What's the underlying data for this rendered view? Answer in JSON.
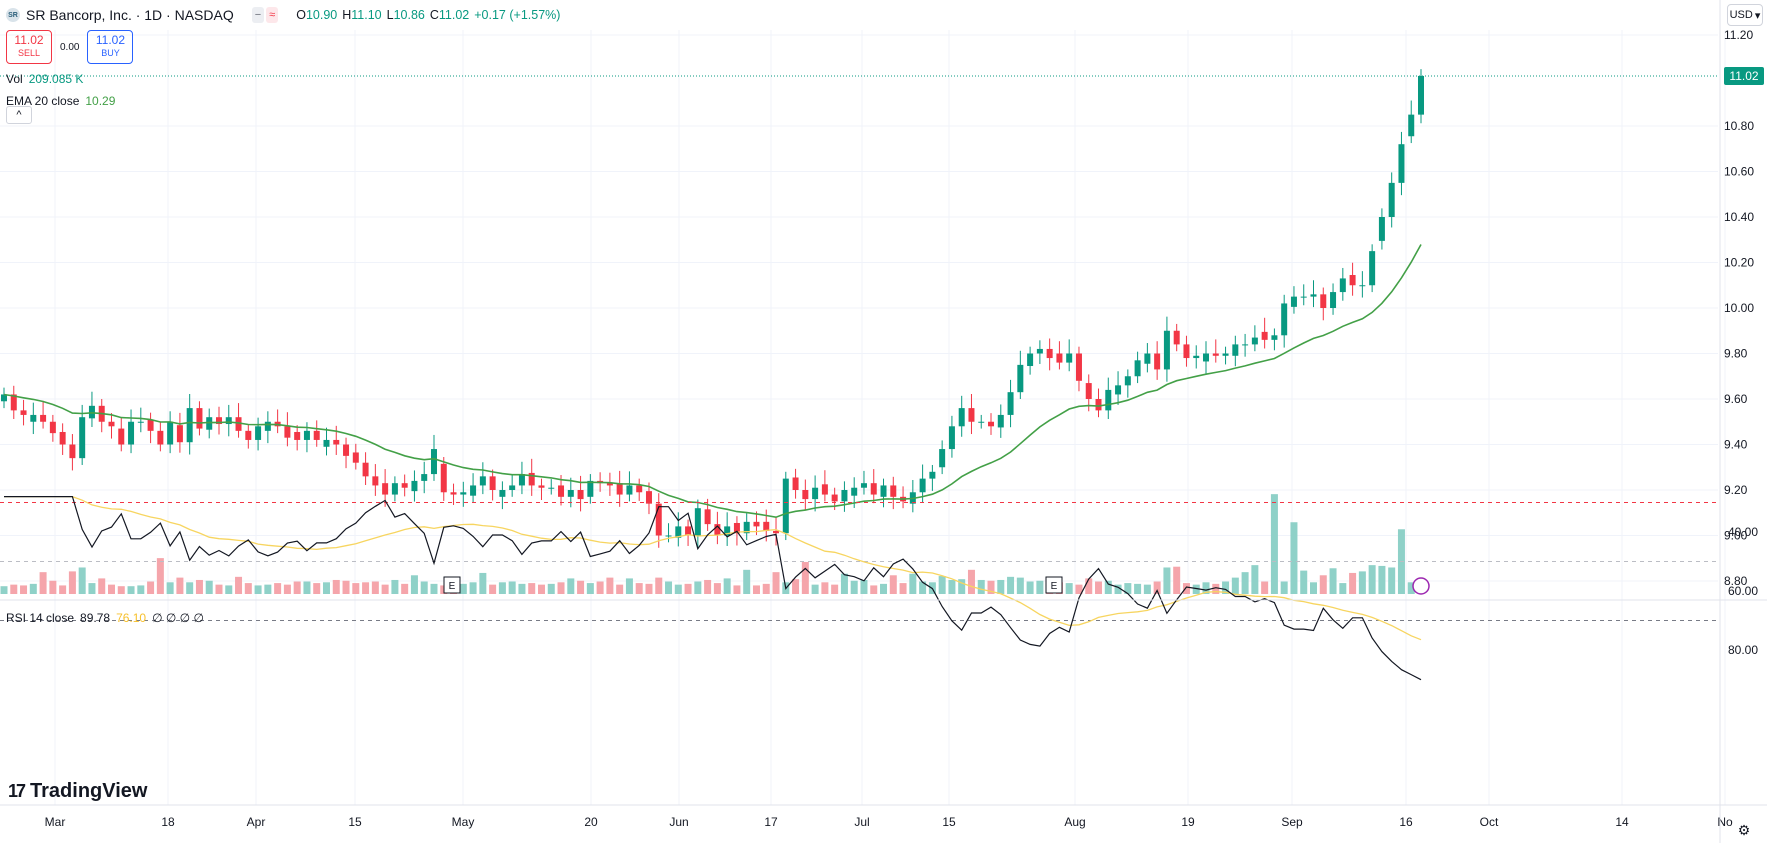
{
  "header": {
    "logo_text": "SR",
    "title": "SR Bancorp, Inc. · 1D · NASDAQ",
    "icons": [
      "compare-icon",
      "indicator-icon"
    ],
    "icon_glyphs": [
      "−",
      "≈"
    ],
    "ohlc": {
      "o_label": "O",
      "o": "10.90",
      "h_label": "H",
      "h": "11.10",
      "l_label": "L",
      "l": "10.86",
      "c_label": "C",
      "c": "11.02",
      "change": "+0.17 (+1.57%)"
    }
  },
  "trade": {
    "sell_price": "11.02",
    "sell_label": "SELL",
    "spread": "0.00",
    "buy_price": "11.02",
    "buy_label": "BUY"
  },
  "legend": {
    "vol_label": "Vol",
    "vol_value": "209.085 K",
    "ema_label": "EMA 20 close",
    "ema_value": "10.29",
    "collapse_glyph": "^"
  },
  "rsi_legend": {
    "label": "RSI 14 close",
    "rsi_value": "89.78",
    "ma_value": "76.10",
    "extra": "∅ ∅ ∅ ∅"
  },
  "currency": "USD",
  "brand": {
    "mark": "17",
    "name": "TradingView"
  },
  "settings_glyph": "⚙",
  "last_price_tag": "11.02",
  "colors": {
    "up": "#089981",
    "down": "#f23645",
    "ema": "#43a047",
    "rsi": "#131722",
    "rsi_ma": "#f7d560",
    "vol_up": "#8fd1c8",
    "vol_down": "#f5a5ab"
  },
  "chart_data": [
    {
      "type": "candlestick",
      "title": "SR Bancorp, Inc. · 1D · NASDAQ",
      "x_tick_labels": [
        "Mar",
        "18",
        "Apr",
        "15",
        "May",
        "20",
        "Jun",
        "17",
        "Jul",
        "15",
        "Aug",
        "19",
        "Sep",
        "16",
        "Oct",
        "14",
        "No"
      ],
      "y_tick_labels": [
        "11.20",
        "10.80",
        "10.60",
        "10.40",
        "10.20",
        "10.00",
        "9.80",
        "9.60",
        "9.40",
        "9.20",
        "9.00",
        "8.80"
      ],
      "ylim": [
        8.8,
        11.2
      ],
      "grid": true,
      "earnings_markers": [
        {
          "date": "Apr 30",
          "label": "E"
        },
        {
          "date": "Jul 30",
          "label": "E"
        }
      ],
      "series": [
        {
          "name": "Close",
          "points": [
            [
              "Feb 26",
              9.62
            ],
            [
              "Feb 27",
              9.55
            ],
            [
              "Feb 28",
              9.53
            ],
            [
              "Feb 29",
              9.53
            ],
            [
              "Mar 1",
              9.5
            ],
            [
              "Mar 4",
              9.45
            ],
            [
              "Mar 5",
              9.4
            ],
            [
              "Mar 6",
              9.34
            ],
            [
              "Mar 7",
              9.52
            ],
            [
              "Mar 8",
              9.57
            ],
            [
              "Mar 11",
              9.5
            ],
            [
              "Mar 12",
              9.48
            ],
            [
              "Mar 13",
              9.4
            ],
            [
              "Mar 14",
              9.5
            ],
            [
              "Mar 15",
              9.5
            ],
            [
              "Mar 18",
              9.46
            ],
            [
              "Mar 19",
              9.4
            ],
            [
              "Mar 20",
              9.5
            ],
            [
              "Mar 21",
              9.41
            ],
            [
              "Mar 22",
              9.56
            ],
            [
              "Mar 25",
              9.47
            ],
            [
              "Mar 26",
              9.52
            ],
            [
              "Mar 27",
              9.49
            ],
            [
              "Mar 28",
              9.52
            ],
            [
              "Apr 1",
              9.46
            ],
            [
              "Apr 2",
              9.42
            ],
            [
              "Apr 3",
              9.48
            ],
            [
              "Apr 4",
              9.5
            ],
            [
              "Apr 5",
              9.48
            ],
            [
              "Apr 8",
              9.43
            ],
            [
              "Apr 9",
              9.42
            ],
            [
              "Apr 10",
              9.46
            ],
            [
              "Apr 11",
              9.42
            ],
            [
              "Apr 12",
              9.42
            ],
            [
              "Apr 15",
              9.4
            ],
            [
              "Apr 16",
              9.35
            ],
            [
              "Apr 17",
              9.32
            ],
            [
              "Apr 18",
              9.26
            ],
            [
              "Apr 19",
              9.22
            ],
            [
              "Apr 22",
              9.18
            ],
            [
              "Apr 23",
              9.23
            ],
            [
              "Apr 24",
              9.21
            ],
            [
              "Apr 25",
              9.24
            ],
            [
              "Apr 26",
              9.27
            ],
            [
              "Apr 29",
              9.38
            ],
            [
              "Apr 30",
              9.19
            ],
            [
              "May 1",
              9.18
            ],
            [
              "May 2",
              9.19
            ],
            [
              "May 3",
              9.22
            ],
            [
              "May 6",
              9.26
            ],
            [
              "May 7",
              9.2
            ],
            [
              "May 8",
              9.2
            ],
            [
              "May 9",
              9.22
            ],
            [
              "May 10",
              9.27
            ],
            [
              "May 13",
              9.22
            ],
            [
              "May 14",
              9.21
            ],
            [
              "May 15",
              9.21
            ],
            [
              "May 16",
              9.17
            ],
            [
              "May 17",
              9.2
            ],
            [
              "May 20",
              9.16
            ],
            [
              "May 21",
              9.24
            ],
            [
              "May 22",
              9.23
            ],
            [
              "May 23",
              9.22
            ],
            [
              "May 24",
              9.18
            ],
            [
              "May 28",
              9.22
            ],
            [
              "May 29",
              9.19
            ],
            [
              "May 30",
              9.14
            ],
            [
              "May 31",
              9.0
            ],
            [
              "Jun 3",
              9.0
            ],
            [
              "Jun 4",
              9.04
            ],
            [
              "Jun 5",
              9.0
            ],
            [
              "Jun 6",
              9.12
            ],
            [
              "Jun 7",
              9.05
            ],
            [
              "Jun 10",
              9.0
            ],
            [
              "Jun 11",
              9.04
            ],
            [
              "Jun 12",
              9.01
            ],
            [
              "Jun 13",
              9.06
            ],
            [
              "Jun 14",
              9.04
            ],
            [
              "Jun 17",
              9.02
            ],
            [
              "Jun 18",
              9.01
            ],
            [
              "Jun 20",
              9.25
            ],
            [
              "Jun 21",
              9.2
            ],
            [
              "Jun 24",
              9.16
            ],
            [
              "Jun 25",
              9.21
            ],
            [
              "Jun 26",
              9.18
            ],
            [
              "Jun 27",
              9.15
            ],
            [
              "Jun 28",
              9.2
            ],
            [
              "Jul 1",
              9.21
            ],
            [
              "Jul 2",
              9.23
            ],
            [
              "Jul 3",
              9.18
            ],
            [
              "Jul 5",
              9.22
            ],
            [
              "Jul 8",
              9.17
            ],
            [
              "Jul 9",
              9.15
            ],
            [
              "Jul 10",
              9.19
            ],
            [
              "Jul 11",
              9.25
            ],
            [
              "Jul 12",
              9.28
            ],
            [
              "Jul 15",
              9.38
            ],
            [
              "Jul 16",
              9.48
            ],
            [
              "Jul 17",
              9.56
            ],
            [
              "Jul 18",
              9.5
            ],
            [
              "Jul 19",
              9.5
            ],
            [
              "Jul 22",
              9.48
            ],
            [
              "Jul 23",
              9.53
            ],
            [
              "Jul 24",
              9.63
            ],
            [
              "Jul 25",
              9.75
            ],
            [
              "Jul 26",
              9.8
            ],
            [
              "Jul 29",
              9.82
            ],
            [
              "Jul 30",
              9.78
            ],
            [
              "Jul 31",
              9.76
            ],
            [
              "Aug 1",
              9.8
            ],
            [
              "Aug 2",
              9.68
            ],
            [
              "Aug 5",
              9.6
            ],
            [
              "Aug 6",
              9.55
            ],
            [
              "Aug 7",
              9.64
            ],
            [
              "Aug 8",
              9.66
            ],
            [
              "Aug 9",
              9.7
            ],
            [
              "Aug 12",
              9.77
            ],
            [
              "Aug 13",
              9.8
            ],
            [
              "Aug 14",
              9.73
            ],
            [
              "Aug 15",
              9.9
            ],
            [
              "Aug 16",
              9.84
            ],
            [
              "Aug 19",
              9.78
            ],
            [
              "Aug 20",
              9.79
            ],
            [
              "Aug 21",
              9.8
            ],
            [
              "Aug 22",
              9.79
            ],
            [
              "Aug 23",
              9.8
            ],
            [
              "Aug 26",
              9.84
            ],
            [
              "Aug 27",
              9.84
            ],
            [
              "Aug 28",
              9.87
            ],
            [
              "Aug 29",
              9.86
            ],
            [
              "Aug 30",
              9.88
            ],
            [
              "Sep 3",
              10.02
            ],
            [
              "Sep 4",
              10.05
            ],
            [
              "Sep 5",
              10.05
            ],
            [
              "Sep 6",
              10.06
            ],
            [
              "Sep 9",
              10.0
            ],
            [
              "Sep 10",
              10.07
            ],
            [
              "Sep 11",
              10.13
            ],
            [
              "Sep 12",
              10.1
            ],
            [
              "Sep 13",
              10.1
            ],
            [
              "Sep 16",
              10.25
            ],
            [
              "Sep 17",
              10.4
            ],
            [
              "Sep 18",
              10.55
            ],
            [
              "Sep 19",
              10.72
            ],
            [
              "Sep 20",
              10.85
            ],
            [
              "Sep 23",
              11.02
            ]
          ]
        },
        {
          "name": "EMA 20 close",
          "last": 10.29
        }
      ]
    },
    {
      "type": "bar",
      "title": "Vol",
      "last_value": "209.085 K",
      "note": "volume histogram; relative heights only"
    },
    {
      "type": "line",
      "title": "RSI 14 close",
      "y_tick_labels": [
        "80.00",
        "60.00",
        "40.00"
      ],
      "ylim": [
        25,
        100
      ],
      "bands": [
        70,
        50,
        30
      ],
      "series": [
        {
          "name": "RSI 14",
          "last": 89.78
        },
        {
          "name": "RSI MA",
          "last": 76.1
        }
      ]
    }
  ]
}
